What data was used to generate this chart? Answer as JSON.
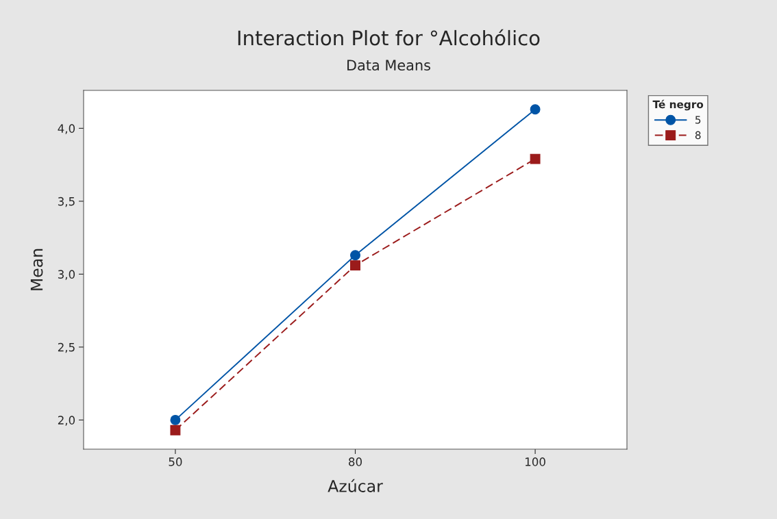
{
  "chart_data": {
    "type": "line",
    "title": "Interaction Plot for °Alcohólico",
    "subtitle": "Data Means",
    "xlabel": "Azúcar",
    "ylabel": "Mean",
    "legend_title": "Té negro",
    "categories": [
      "50",
      "80",
      "100"
    ],
    "series": [
      {
        "name": "5",
        "color": "#0054a6",
        "values": [
          2.0,
          3.13,
          4.13
        ],
        "marker": "circle",
        "line_style": "solid"
      },
      {
        "name": "8",
        "color": "#9b1b1b",
        "values": [
          1.93,
          3.06,
          3.79
        ],
        "marker": "square",
        "line_style": "dashed"
      }
    ],
    "ylim": [
      1.8,
      4.26
    ],
    "yticks": [
      {
        "value": 2.0,
        "label": "2,0"
      },
      {
        "value": 2.5,
        "label": "2,5"
      },
      {
        "value": 3.0,
        "label": "3,0"
      },
      {
        "value": 3.5,
        "label": "3,5"
      },
      {
        "value": 4.0,
        "label": "4,0"
      }
    ],
    "grid": false,
    "legend": "top right"
  }
}
